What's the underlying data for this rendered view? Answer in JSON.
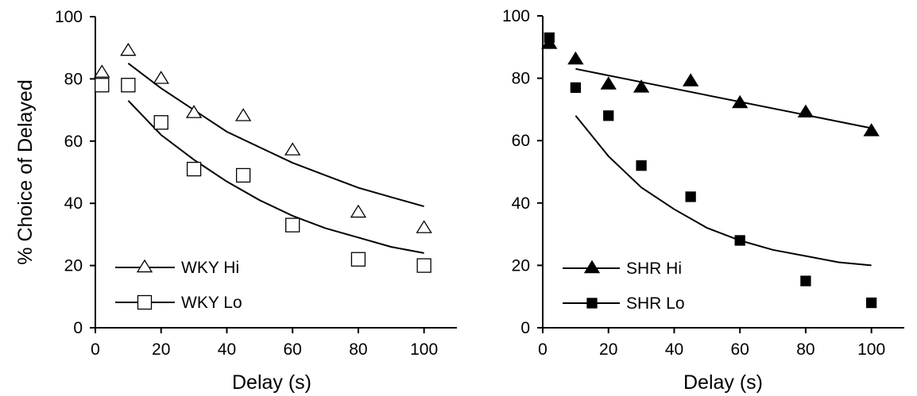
{
  "chart_data": [
    {
      "type": "scatter",
      "panel": "left",
      "xlabel": "Delay (s)",
      "ylabel": "% Choice of Delayed",
      "xlim": [
        0,
        110
      ],
      "ylim": [
        0,
        100
      ],
      "xticks": [
        0,
        20,
        40,
        60,
        80,
        100
      ],
      "yticks": [
        0,
        20,
        40,
        60,
        80,
        100
      ],
      "legend_placement": "bottom-left",
      "series": [
        {
          "name": "WKY Hi",
          "marker": "open-triangle",
          "x": [
            2,
            10,
            20,
            30,
            45,
            60,
            80,
            100
          ],
          "y": [
            82,
            89,
            80,
            69,
            68,
            57,
            37,
            32
          ],
          "fit_x": [
            10,
            20,
            30,
            40,
            50,
            60,
            70,
            80,
            90,
            100
          ],
          "fit_y": [
            85,
            77,
            70,
            63,
            58,
            53,
            49,
            45,
            42,
            39
          ]
        },
        {
          "name": "WKY Lo",
          "marker": "open-square",
          "x": [
            2,
            10,
            20,
            30,
            45,
            60,
            80,
            100
          ],
          "y": [
            78,
            78,
            66,
            51,
            49,
            33,
            22,
            20
          ],
          "fit_x": [
            10,
            20,
            30,
            40,
            50,
            60,
            70,
            80,
            90,
            100
          ],
          "fit_y": [
            73,
            62,
            54,
            47,
            41,
            36,
            32,
            29,
            26,
            24
          ]
        }
      ]
    },
    {
      "type": "scatter",
      "panel": "right",
      "xlabel": "Delay (s)",
      "ylabel": "",
      "xlim": [
        0,
        110
      ],
      "ylim": [
        0,
        100
      ],
      "xticks": [
        0,
        20,
        40,
        60,
        80,
        100
      ],
      "yticks": [
        0,
        20,
        40,
        60,
        80,
        100
      ],
      "legend_placement": "bottom-left",
      "series": [
        {
          "name": "SHR Hi",
          "marker": "filled-triangle",
          "x": [
            2,
            10,
            20,
            30,
            45,
            60,
            80,
            100
          ],
          "y": [
            91,
            86,
            78,
            77,
            79,
            72,
            69,
            63
          ],
          "fit_x": [
            10,
            100
          ],
          "fit_y": [
            83,
            64
          ]
        },
        {
          "name": "SHR Lo",
          "marker": "filled-square",
          "x": [
            2,
            10,
            20,
            30,
            45,
            60,
            80,
            100
          ],
          "y": [
            93,
            77,
            68,
            52,
            42,
            28,
            15,
            8
          ],
          "fit_x": [
            10,
            20,
            30,
            40,
            50,
            60,
            70,
            80,
            90,
            100
          ],
          "fit_y": [
            68,
            55,
            45,
            38,
            32,
            28,
            25,
            23,
            21,
            20
          ]
        }
      ]
    }
  ]
}
